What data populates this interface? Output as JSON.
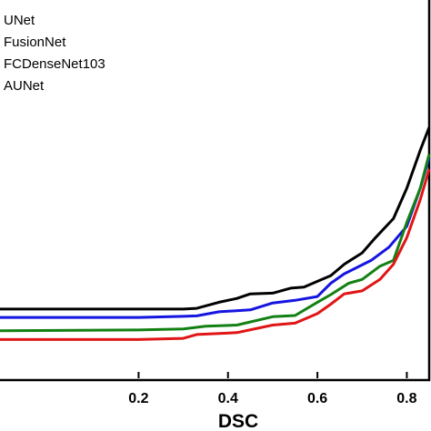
{
  "chart_data": {
    "type": "line",
    "xlabel": "DSC",
    "ylabel": "",
    "xlim": [
      -0.11,
      0.85
    ],
    "ylim": [
      0.0,
      1.0
    ],
    "x_ticks": [
      {
        "value": 0.2,
        "label": "0.2"
      },
      {
        "value": 0.4,
        "label": "0.4"
      },
      {
        "value": 0.6,
        "label": "0.6"
      },
      {
        "value": 0.8,
        "label": "0.8"
      }
    ],
    "legend": {
      "placement": "top-left",
      "entries": [
        "UNet",
        "FusionNet",
        "FCDenseNet103",
        "AUNet"
      ]
    },
    "grid": false,
    "series": [
      {
        "name": "UNet",
        "color": "#000000",
        "points": [
          [
            -0.11,
            0.182
          ],
          [
            0.2,
            0.182
          ],
          [
            0.3,
            0.182
          ],
          [
            0.33,
            0.184
          ],
          [
            0.38,
            0.2
          ],
          [
            0.42,
            0.21
          ],
          [
            0.45,
            0.222
          ],
          [
            0.5,
            0.224
          ],
          [
            0.54,
            0.237
          ],
          [
            0.57,
            0.24
          ],
          [
            0.6,
            0.255
          ],
          [
            0.63,
            0.27
          ],
          [
            0.66,
            0.3
          ],
          [
            0.7,
            0.33
          ],
          [
            0.73,
            0.37
          ],
          [
            0.77,
            0.42
          ],
          [
            0.8,
            0.5
          ],
          [
            0.83,
            0.6
          ],
          [
            0.85,
            0.66
          ]
        ]
      },
      {
        "name": "FusionNet",
        "color": "#1515e0",
        "points": [
          [
            -0.11,
            0.16
          ],
          [
            0.2,
            0.16
          ],
          [
            0.3,
            0.163
          ],
          [
            0.33,
            0.164
          ],
          [
            0.38,
            0.175
          ],
          [
            0.45,
            0.18
          ],
          [
            0.5,
            0.198
          ],
          [
            0.55,
            0.205
          ],
          [
            0.6,
            0.215
          ],
          [
            0.63,
            0.25
          ],
          [
            0.66,
            0.275
          ],
          [
            0.72,
            0.31
          ],
          [
            0.76,
            0.345
          ],
          [
            0.8,
            0.4
          ],
          [
            0.83,
            0.5
          ],
          [
            0.85,
            0.58
          ]
        ]
      },
      {
        "name": "FCDenseNet103",
        "color": "#138013",
        "points": [
          [
            -0.11,
            0.125
          ],
          [
            0.2,
            0.127
          ],
          [
            0.3,
            0.13
          ],
          [
            0.35,
            0.137
          ],
          [
            0.42,
            0.14
          ],
          [
            0.5,
            0.162
          ],
          [
            0.55,
            0.165
          ],
          [
            0.6,
            0.2
          ],
          [
            0.63,
            0.22
          ],
          [
            0.67,
            0.25
          ],
          [
            0.7,
            0.26
          ],
          [
            0.74,
            0.295
          ],
          [
            0.77,
            0.31
          ],
          [
            0.8,
            0.41
          ],
          [
            0.83,
            0.5
          ],
          [
            0.85,
            0.59
          ]
        ]
      },
      {
        "name": "AUNet",
        "color": "#e01515",
        "points": [
          [
            -0.11,
            0.102
          ],
          [
            0.2,
            0.102
          ],
          [
            0.3,
            0.105
          ],
          [
            0.33,
            0.115
          ],
          [
            0.42,
            0.12
          ],
          [
            0.5,
            0.14
          ],
          [
            0.55,
            0.145
          ],
          [
            0.6,
            0.17
          ],
          [
            0.63,
            0.195
          ],
          [
            0.66,
            0.222
          ],
          [
            0.7,
            0.23
          ],
          [
            0.74,
            0.26
          ],
          [
            0.77,
            0.3
          ],
          [
            0.8,
            0.37
          ],
          [
            0.83,
            0.47
          ],
          [
            0.85,
            0.55
          ]
        ]
      }
    ]
  }
}
